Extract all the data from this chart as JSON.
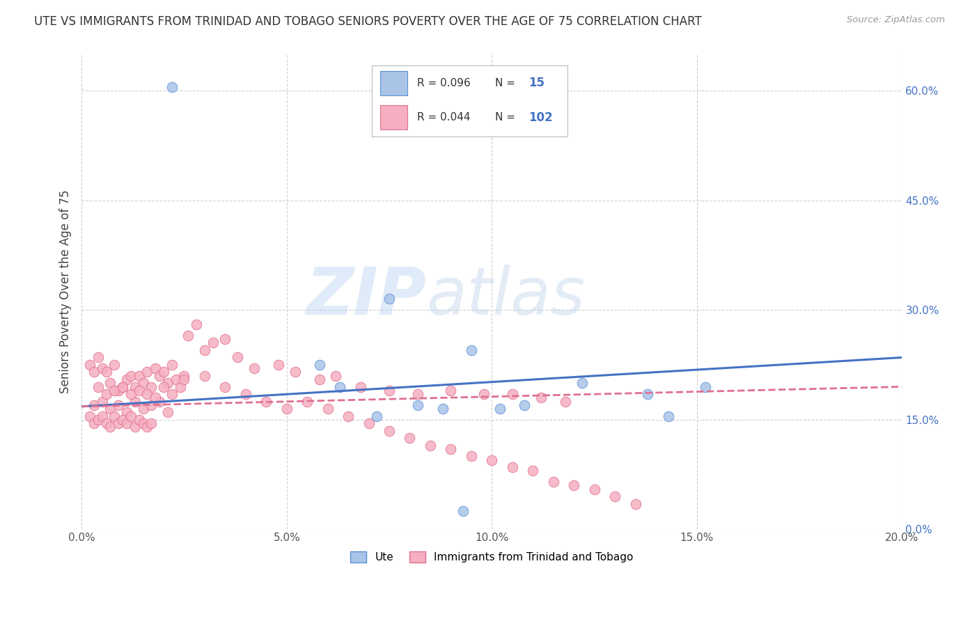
{
  "title": "UTE VS IMMIGRANTS FROM TRINIDAD AND TOBAGO SENIORS POVERTY OVER THE AGE OF 75 CORRELATION CHART",
  "source": "Source: ZipAtlas.com",
  "ylabel": "Seniors Poverty Over the Age of 75",
  "xlim": [
    0.0,
    0.2
  ],
  "ylim": [
    0.0,
    0.65
  ],
  "xticks": [
    0.0,
    0.05,
    0.1,
    0.15,
    0.2
  ],
  "xticklabels": [
    "0.0%",
    "5.0%",
    "10.0%",
    "15.0%",
    "20.0%"
  ],
  "yticks_right": [
    0.0,
    0.15,
    0.3,
    0.45,
    0.6
  ],
  "yticklabels_right": [
    "0.0%",
    "15.0%",
    "30.0%",
    "45.0%",
    "60.0%"
  ],
  "watermark_zip": "ZIP",
  "watermark_atlas": "atlas",
  "legend_ute_R": "0.096",
  "legend_ute_N": "15",
  "legend_tt_R": "0.044",
  "legend_tt_N": "102",
  "ute_color": "#aac4e8",
  "tt_color": "#f5afc0",
  "ute_edge": "#5b8fd4",
  "tt_edge": "#e07090",
  "trend_ute_color": "#4472c4",
  "trend_tt_color": "#e07090",
  "background_color": "#ffffff",
  "grid_color": "#d0d0d0",
  "ute_scatter_x": [
    0.022,
    0.075,
    0.058,
    0.095,
    0.063,
    0.122,
    0.138,
    0.152,
    0.102,
    0.108,
    0.088,
    0.072,
    0.143,
    0.082,
    0.093
  ],
  "ute_scatter_y": [
    0.605,
    0.315,
    0.225,
    0.245,
    0.195,
    0.2,
    0.185,
    0.195,
    0.165,
    0.17,
    0.165,
    0.155,
    0.155,
    0.17,
    0.025
  ],
  "tt_scatter_x": [
    0.002,
    0.003,
    0.004,
    0.005,
    0.006,
    0.007,
    0.008,
    0.009,
    0.01,
    0.011,
    0.012,
    0.013,
    0.014,
    0.015,
    0.016,
    0.017,
    0.018,
    0.019,
    0.02,
    0.021,
    0.022,
    0.023,
    0.024,
    0.025,
    0.003,
    0.005,
    0.007,
    0.009,
    0.011,
    0.013,
    0.015,
    0.017,
    0.019,
    0.021,
    0.004,
    0.006,
    0.008,
    0.01,
    0.012,
    0.014,
    0.016,
    0.018,
    0.02,
    0.022,
    0.002,
    0.003,
    0.004,
    0.005,
    0.006,
    0.007,
    0.008,
    0.009,
    0.01,
    0.011,
    0.012,
    0.013,
    0.014,
    0.015,
    0.016,
    0.017,
    0.026,
    0.028,
    0.03,
    0.032,
    0.035,
    0.038,
    0.042,
    0.048,
    0.052,
    0.058,
    0.062,
    0.068,
    0.075,
    0.082,
    0.09,
    0.098,
    0.105,
    0.112,
    0.118,
    0.025,
    0.03,
    0.035,
    0.04,
    0.045,
    0.05,
    0.055,
    0.06,
    0.065,
    0.07,
    0.075,
    0.08,
    0.085,
    0.09,
    0.095,
    0.1,
    0.105,
    0.11,
    0.115,
    0.12,
    0.125,
    0.13,
    0.135
  ],
  "tt_scatter_y": [
    0.225,
    0.215,
    0.235,
    0.22,
    0.215,
    0.2,
    0.225,
    0.19,
    0.195,
    0.205,
    0.21,
    0.195,
    0.21,
    0.2,
    0.215,
    0.195,
    0.22,
    0.21,
    0.215,
    0.2,
    0.225,
    0.205,
    0.195,
    0.21,
    0.17,
    0.175,
    0.165,
    0.17,
    0.16,
    0.175,
    0.165,
    0.17,
    0.175,
    0.16,
    0.195,
    0.185,
    0.19,
    0.195,
    0.185,
    0.19,
    0.185,
    0.18,
    0.195,
    0.185,
    0.155,
    0.145,
    0.15,
    0.155,
    0.145,
    0.14,
    0.155,
    0.145,
    0.15,
    0.145,
    0.155,
    0.14,
    0.15,
    0.145,
    0.14,
    0.145,
    0.265,
    0.28,
    0.245,
    0.255,
    0.26,
    0.235,
    0.22,
    0.225,
    0.215,
    0.205,
    0.21,
    0.195,
    0.19,
    0.185,
    0.19,
    0.185,
    0.185,
    0.18,
    0.175,
    0.205,
    0.21,
    0.195,
    0.185,
    0.175,
    0.165,
    0.175,
    0.165,
    0.155,
    0.145,
    0.135,
    0.125,
    0.115,
    0.11,
    0.1,
    0.095,
    0.085,
    0.08,
    0.065,
    0.06,
    0.055,
    0.045,
    0.035
  ],
  "trend_ute_x0": 0.0,
  "trend_ute_y0": 0.168,
  "trend_ute_x1": 0.2,
  "trend_ute_y1": 0.235,
  "trend_tt_x0": 0.0,
  "trend_tt_y0": 0.168,
  "trend_tt_x1": 0.2,
  "trend_tt_y1": 0.195
}
